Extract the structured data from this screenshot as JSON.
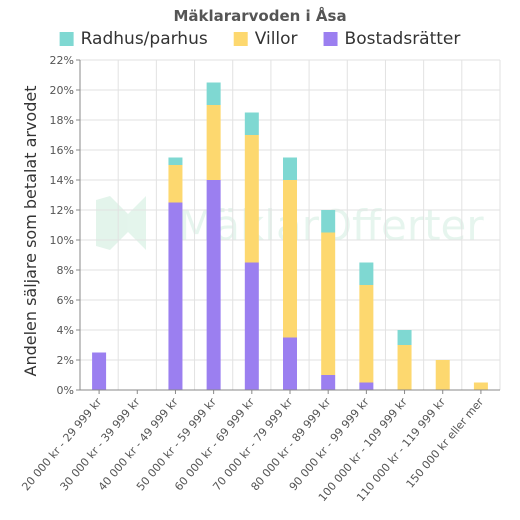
{
  "chart_data": {
    "type": "bar",
    "stacked": true,
    "title": "Mäklararvoden i Åsa",
    "ylabel": "Andelen säljare som betalat arvodet",
    "xlabel": "",
    "ylim": [
      0,
      22
    ],
    "ytick_values": [
      0,
      2,
      4,
      6,
      8,
      10,
      12,
      14,
      16,
      18,
      20,
      22
    ],
    "ytick_labels": [
      "0%",
      "2%",
      "4%",
      "6%",
      "8%",
      "10%",
      "12%",
      "14%",
      "16%",
      "18%",
      "20%",
      "22%"
    ],
    "categories": [
      "20 000 kr - 29 999 kr",
      "30 000 kr - 39 999 kr",
      "40 000 kr - 49 999 kr",
      "50 000 kr - 59 999 kr",
      "60 000 kr - 69 999 kr",
      "70 000 kr - 79 999 kr",
      "80 000 kr - 89 999 kr",
      "90 000 kr - 99 999 kr",
      "100 000 kr - 109 999 kr",
      "110 000 kr - 119 999 kr",
      "150 000 kr eller mer"
    ],
    "series": [
      {
        "name": "Bostadsrätter",
        "color": "#9b7ff0",
        "values": [
          2.5,
          0,
          12.5,
          14,
          8.5,
          3.5,
          1,
          0.5,
          0,
          0,
          0
        ]
      },
      {
        "name": "Villor",
        "color": "#fdd86f",
        "values": [
          0,
          0,
          2.5,
          5,
          8.5,
          10.5,
          9.5,
          6.5,
          3,
          2,
          0.5
        ]
      },
      {
        "name": "Radhus/parhus",
        "color": "#7fd8d2",
        "values": [
          0,
          0,
          0.5,
          1.5,
          1.5,
          1.5,
          1.5,
          1.5,
          1,
          0,
          0
        ]
      }
    ],
    "legend_order": [
      "Radhus/parhus",
      "Villor",
      "Bostadsrätter"
    ],
    "legend_position": "top",
    "grid": true
  },
  "watermark": {
    "part1": "Mäklar",
    "part2": "Offerter"
  }
}
